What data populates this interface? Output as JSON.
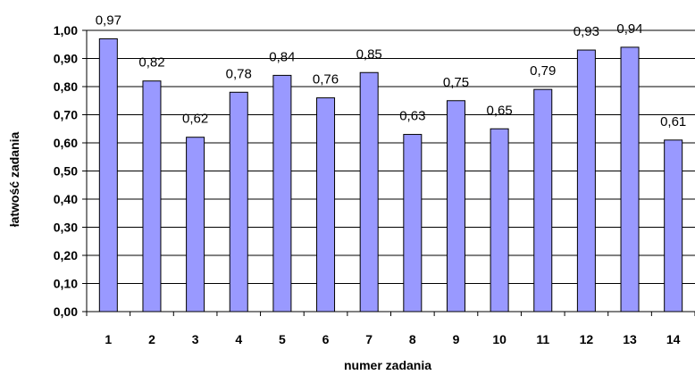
{
  "chart_data": {
    "type": "bar",
    "categories": [
      "1",
      "2",
      "3",
      "4",
      "5",
      "6",
      "7",
      "8",
      "9",
      "10",
      "11",
      "12",
      "13",
      "14"
    ],
    "values": [
      0.97,
      0.82,
      0.62,
      0.78,
      0.84,
      0.76,
      0.85,
      0.63,
      0.75,
      0.65,
      0.79,
      0.93,
      0.94,
      0.61
    ],
    "data_labels": [
      "0,97",
      "0,82",
      "0,62",
      "0,78",
      "0,84",
      "0,76",
      "0,85",
      "0,63",
      "0,75",
      "0,65",
      "0,79",
      "0,93",
      "0,94",
      "0,61"
    ],
    "y_ticks": [
      "0,00",
      "0,10",
      "0,20",
      "0,30",
      "0,40",
      "0,50",
      "0,60",
      "0,70",
      "0,80",
      "0,90",
      "1,00"
    ],
    "title": "",
    "xlabel": "numer zadania",
    "ylabel": "łatwość zadania",
    "ylim": [
      0,
      1
    ],
    "grid": true,
    "legend": "none",
    "colors": {
      "bar_fill": "#9999ff",
      "bar_stroke": "#000000",
      "grid": "#000000"
    }
  }
}
